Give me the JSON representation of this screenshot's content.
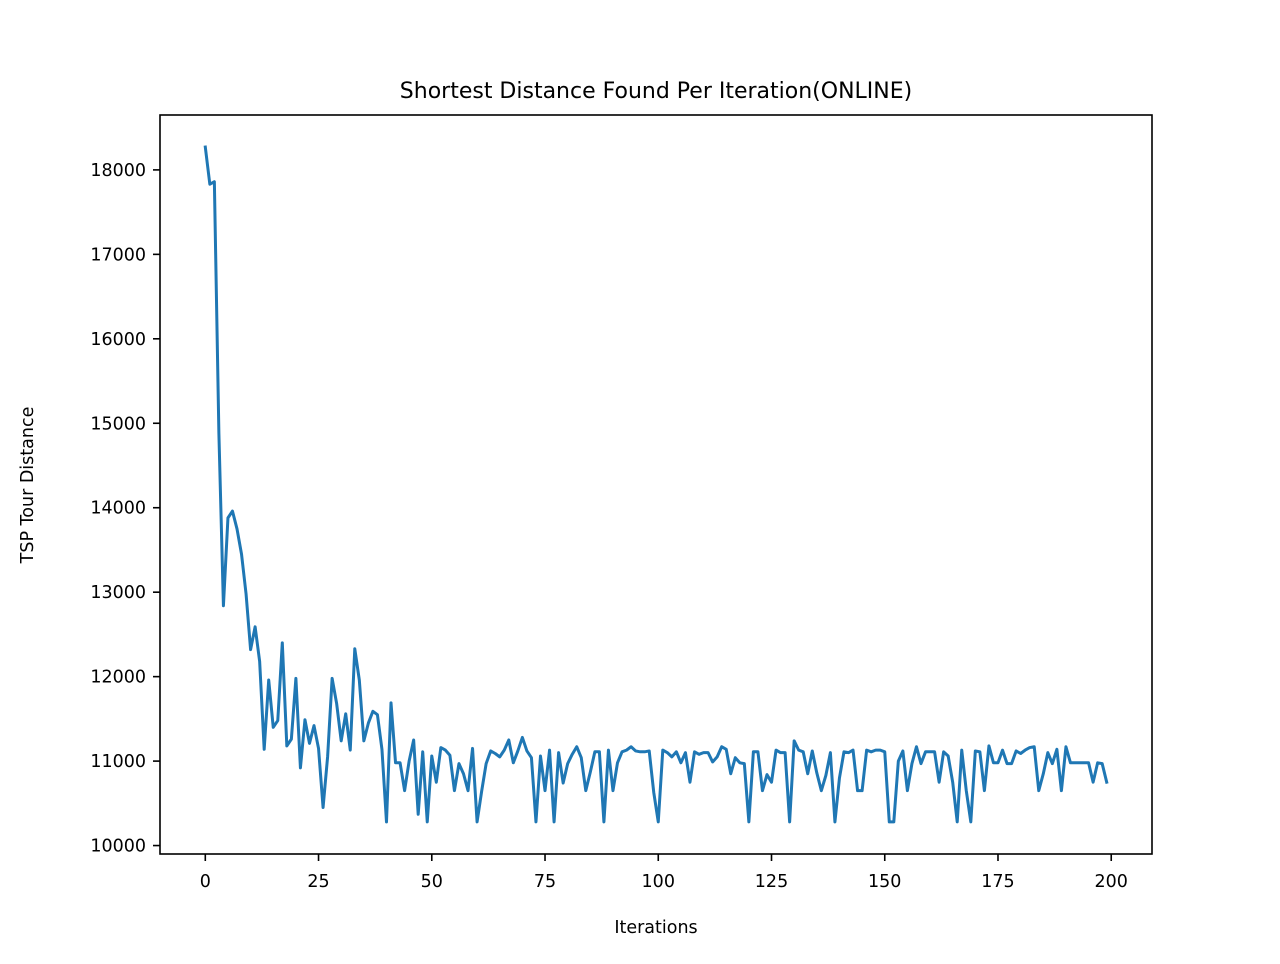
{
  "chart_data": {
    "type": "line",
    "title": "Shortest Distance Found Per Iteration(ONLINE)",
    "xlabel": "Iterations",
    "ylabel": "TSP Tour Distance",
    "xlim": [
      -10,
      209
    ],
    "ylim": [
      9900,
      18650
    ],
    "xticks": [
      0,
      25,
      50,
      75,
      100,
      125,
      150,
      175,
      200
    ],
    "yticks": [
      10000,
      11000,
      12000,
      13000,
      14000,
      15000,
      16000,
      17000,
      18000
    ],
    "grid": false,
    "legend": "none",
    "colors": {
      "line": "#1f77b4",
      "axes": "#000000",
      "background": "#ffffff"
    },
    "series": [
      {
        "x": [
          0,
          1,
          2,
          3,
          4,
          5,
          6,
          7,
          8,
          9,
          10,
          11,
          12,
          13,
          14,
          15,
          16,
          17,
          18,
          19,
          20,
          21,
          22,
          23,
          24,
          25,
          26,
          27,
          28,
          29,
          30,
          31,
          32,
          33,
          34,
          35,
          36,
          37,
          38,
          39,
          40,
          41,
          42,
          43,
          44,
          45,
          46,
          47,
          48,
          49,
          50,
          51,
          52,
          53,
          54,
          55,
          56,
          57,
          58,
          59,
          60,
          61,
          62,
          63,
          64,
          65,
          66,
          67,
          68,
          69,
          70,
          71,
          72,
          73,
          74,
          75,
          76,
          77,
          78,
          79,
          80,
          81,
          82,
          83,
          84,
          85,
          86,
          87,
          88,
          89,
          90,
          91,
          92,
          93,
          94,
          95,
          96,
          97,
          98,
          99,
          100,
          101,
          102,
          103,
          104,
          105,
          106,
          107,
          108,
          109,
          110,
          111,
          112,
          113,
          114,
          115,
          116,
          117,
          118,
          119,
          120,
          121,
          122,
          123,
          124,
          125,
          126,
          127,
          128,
          129,
          130,
          131,
          132,
          133,
          134,
          135,
          136,
          137,
          138,
          139,
          140,
          141,
          142,
          143,
          144,
          145,
          146,
          147,
          148,
          149,
          150,
          151,
          152,
          153,
          154,
          155,
          156,
          157,
          158,
          159,
          160,
          161,
          162,
          163,
          164,
          165,
          166,
          167,
          168,
          169,
          170,
          171,
          172,
          173,
          174,
          175,
          176,
          177,
          178,
          179,
          180,
          181,
          182,
          183,
          184,
          185,
          186,
          187,
          188,
          189,
          190,
          191,
          192,
          193,
          194,
          195,
          196,
          197,
          198,
          199
        ],
        "y": [
          18270,
          17830,
          17860,
          14880,
          12840,
          13880,
          13960,
          13750,
          13450,
          12980,
          12320,
          12590,
          12180,
          11140,
          11960,
          11400,
          11480,
          12400,
          11180,
          11260,
          11980,
          10920,
          11490,
          11210,
          11420,
          11150,
          10450,
          11050,
          11980,
          11680,
          11240,
          11560,
          11130,
          12330,
          11960,
          11240,
          11450,
          11590,
          11550,
          11140,
          10280,
          11690,
          10980,
          10980,
          10650,
          11000,
          11250,
          10370,
          11110,
          10280,
          11060,
          10750,
          11160,
          11130,
          11070,
          10650,
          10970,
          10850,
          10650,
          11150,
          10280,
          10640,
          10970,
          11120,
          11090,
          11050,
          11130,
          11250,
          10980,
          11120,
          11280,
          11120,
          11040,
          10280,
          11060,
          10650,
          11130,
          10280,
          11100,
          10740,
          10970,
          11080,
          11170,
          11040,
          10650,
          10870,
          11110,
          11110,
          10280,
          11130,
          10650,
          10980,
          11110,
          11130,
          11170,
          11120,
          11110,
          11110,
          11120,
          10630,
          10280,
          11130,
          11100,
          11050,
          11110,
          10980,
          11100,
          10750,
          11110,
          11080,
          11100,
          11100,
          10990,
          11050,
          11170,
          11140,
          10850,
          11040,
          10980,
          10970,
          10280,
          11110,
          11110,
          10650,
          10840,
          10750,
          11130,
          11100,
          11100,
          10280,
          11240,
          11130,
          11110,
          10850,
          11120,
          10860,
          10650,
          10830,
          11100,
          10280,
          10800,
          11110,
          11100,
          11130,
          10650,
          10650,
          11130,
          11110,
          11130,
          11130,
          11110,
          10280,
          10280,
          11000,
          11120,
          10650,
          10970,
          11170,
          10970,
          11110,
          11110,
          11110,
          10750,
          11110,
          11060,
          10750,
          10280,
          11130,
          10650,
          10280,
          11120,
          11110,
          10650,
          11180,
          10980,
          10980,
          11130,
          10970,
          10970,
          11120,
          11090,
          11130,
          11160,
          11170,
          10650,
          10850,
          11100,
          10970,
          11140,
          10650,
          11170,
          10980,
          10980,
          10980,
          10980,
          10980,
          10750,
          10980,
          10970,
          10750
        ]
      }
    ]
  }
}
